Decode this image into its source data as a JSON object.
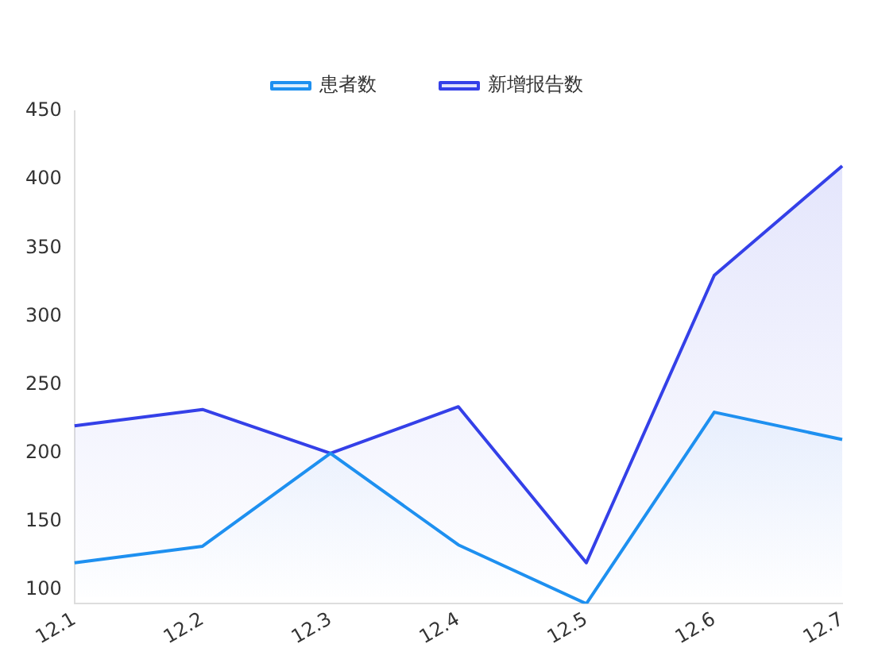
{
  "chart_data": {
    "type": "area",
    "categories": [
      "12.1",
      "12.2",
      "12.3",
      "12.4",
      "12.5",
      "12.6",
      "12.7"
    ],
    "series": [
      {
        "name": "患者数",
        "color": "#1e90f0",
        "values": [
          120,
          132,
          200,
          133,
          90,
          230,
          210
        ]
      },
      {
        "name": "新增报告数",
        "color": "#3440e8",
        "values": [
          220,
          232,
          200,
          234,
          120,
          330,
          410
        ]
      }
    ],
    "ylim": [
      90,
      450
    ],
    "yticks": [
      100,
      150,
      200,
      250,
      300,
      350,
      400,
      450
    ],
    "grid": false,
    "legend": "top",
    "marker": "none"
  }
}
